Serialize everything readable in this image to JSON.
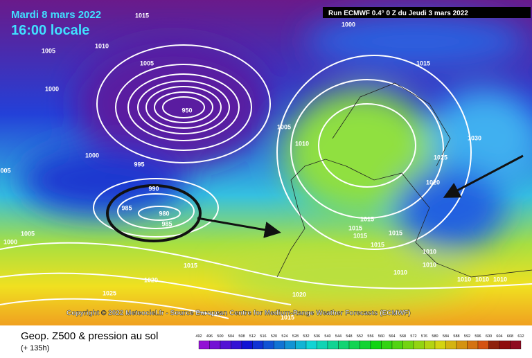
{
  "header": {
    "date": "Mardi 8 mars 2022",
    "time": "16:00 locale",
    "run": "Run ECMWF 0.4° 0 Z du Jeudi 3 mars 2022"
  },
  "copyright": "Copyright © 2022 Meteociel.fr - Source European Centre for Medium-Range Weather Forecasts (ECMWF)",
  "footer": {
    "title": "Geop. Z500 & pression au sol",
    "lead": "(+ 135h)"
  },
  "isobar_labels": [
    "1015",
    "1010",
    "1005",
    "1005",
    "1000",
    "1000",
    "995",
    "1005",
    "1010",
    "1000",
    "1015",
    "1030",
    "1025",
    "1020",
    "990",
    "985",
    "980",
    "985",
    "950",
    "005",
    "1000",
    "1005",
    "1015",
    "1020",
    "1025",
    "1015",
    "1015",
    "1015",
    "1015",
    "1015",
    "1010",
    "1010",
    "1010",
    "1010",
    "1010",
    "1010",
    "1020",
    "1015"
  ],
  "colorbar": {
    "ticks": [
      492,
      496,
      500,
      504,
      508,
      512,
      516,
      520,
      524,
      528,
      532,
      536,
      540,
      544,
      548,
      552,
      556,
      560,
      564,
      568,
      572,
      576,
      580,
      584,
      588,
      592,
      596,
      600,
      604,
      608,
      612
    ]
  }
}
